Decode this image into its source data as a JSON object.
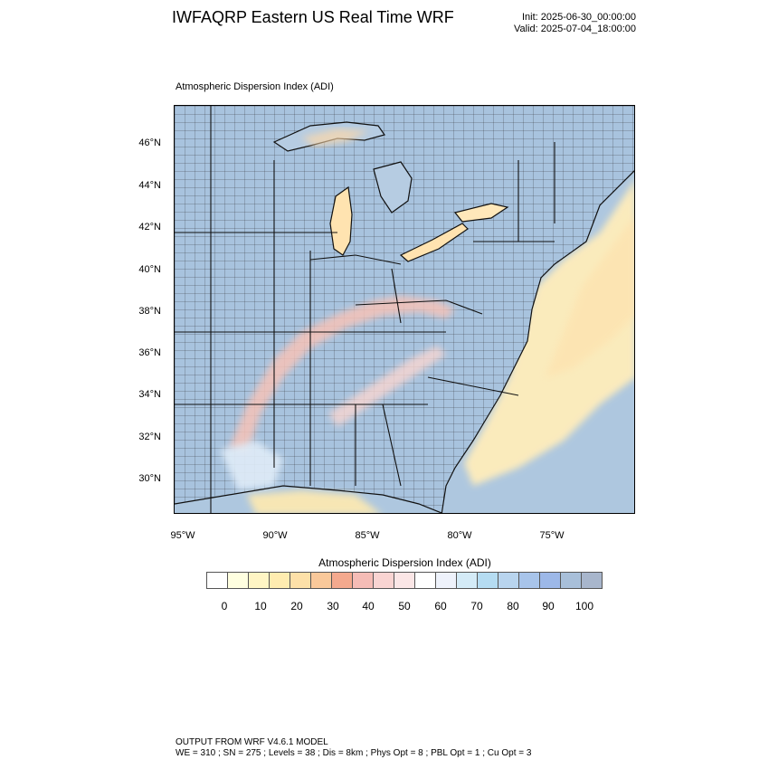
{
  "header": {
    "title": "IWFAQRP Eastern US Real Time WRF",
    "init": "Init: 2025-06-30_00:00:00",
    "valid": "Valid: 2025-07-04_18:00:00"
  },
  "map": {
    "subtitle": "Atmospheric Dispersion Index   (ADI)",
    "lat_labels": [
      "46°N",
      "44°N",
      "42°N",
      "40°N",
      "38°N",
      "36°N",
      "34°N",
      "32°N",
      "30°N"
    ],
    "lon_labels": [
      "95°W",
      "90°W",
      "85°W",
      "80°W",
      "75°W"
    ],
    "colors": {
      "land_base": "#a8c3de",
      "ocean_base": "#aec7df",
      "lakes": "#b6cce2",
      "boundaries": "#111111"
    }
  },
  "colorbar": {
    "title": "Atmospheric Dispersion Index  (ADI)",
    "labels": [
      "0",
      "10",
      "20",
      "30",
      "40",
      "50",
      "60",
      "70",
      "80",
      "90",
      "100"
    ],
    "colors": [
      "#ffffff",
      "#ffffe0",
      "#fff5c4",
      "#ffecb0",
      "#fde0a8",
      "#f9c89a",
      "#f4a98e",
      "#f5bcb6",
      "#f9d4d2",
      "#fbe6e6",
      "#ffffff",
      "#eef2fb",
      "#d4ebf7",
      "#b5dcf2",
      "#b8d4ee",
      "#a8c4ea",
      "#9db8e8",
      "#a8bfd9",
      "#a8b6cc"
    ]
  },
  "footer": {
    "line1": "OUTPUT FROM WRF V4.6.1 MODEL",
    "line2": "WE = 310 ; SN = 275 ; Levels = 38 ; Dis = 8km ; Phys Opt = 8 ; PBL Opt = 1 ; Cu Opt = 3"
  }
}
